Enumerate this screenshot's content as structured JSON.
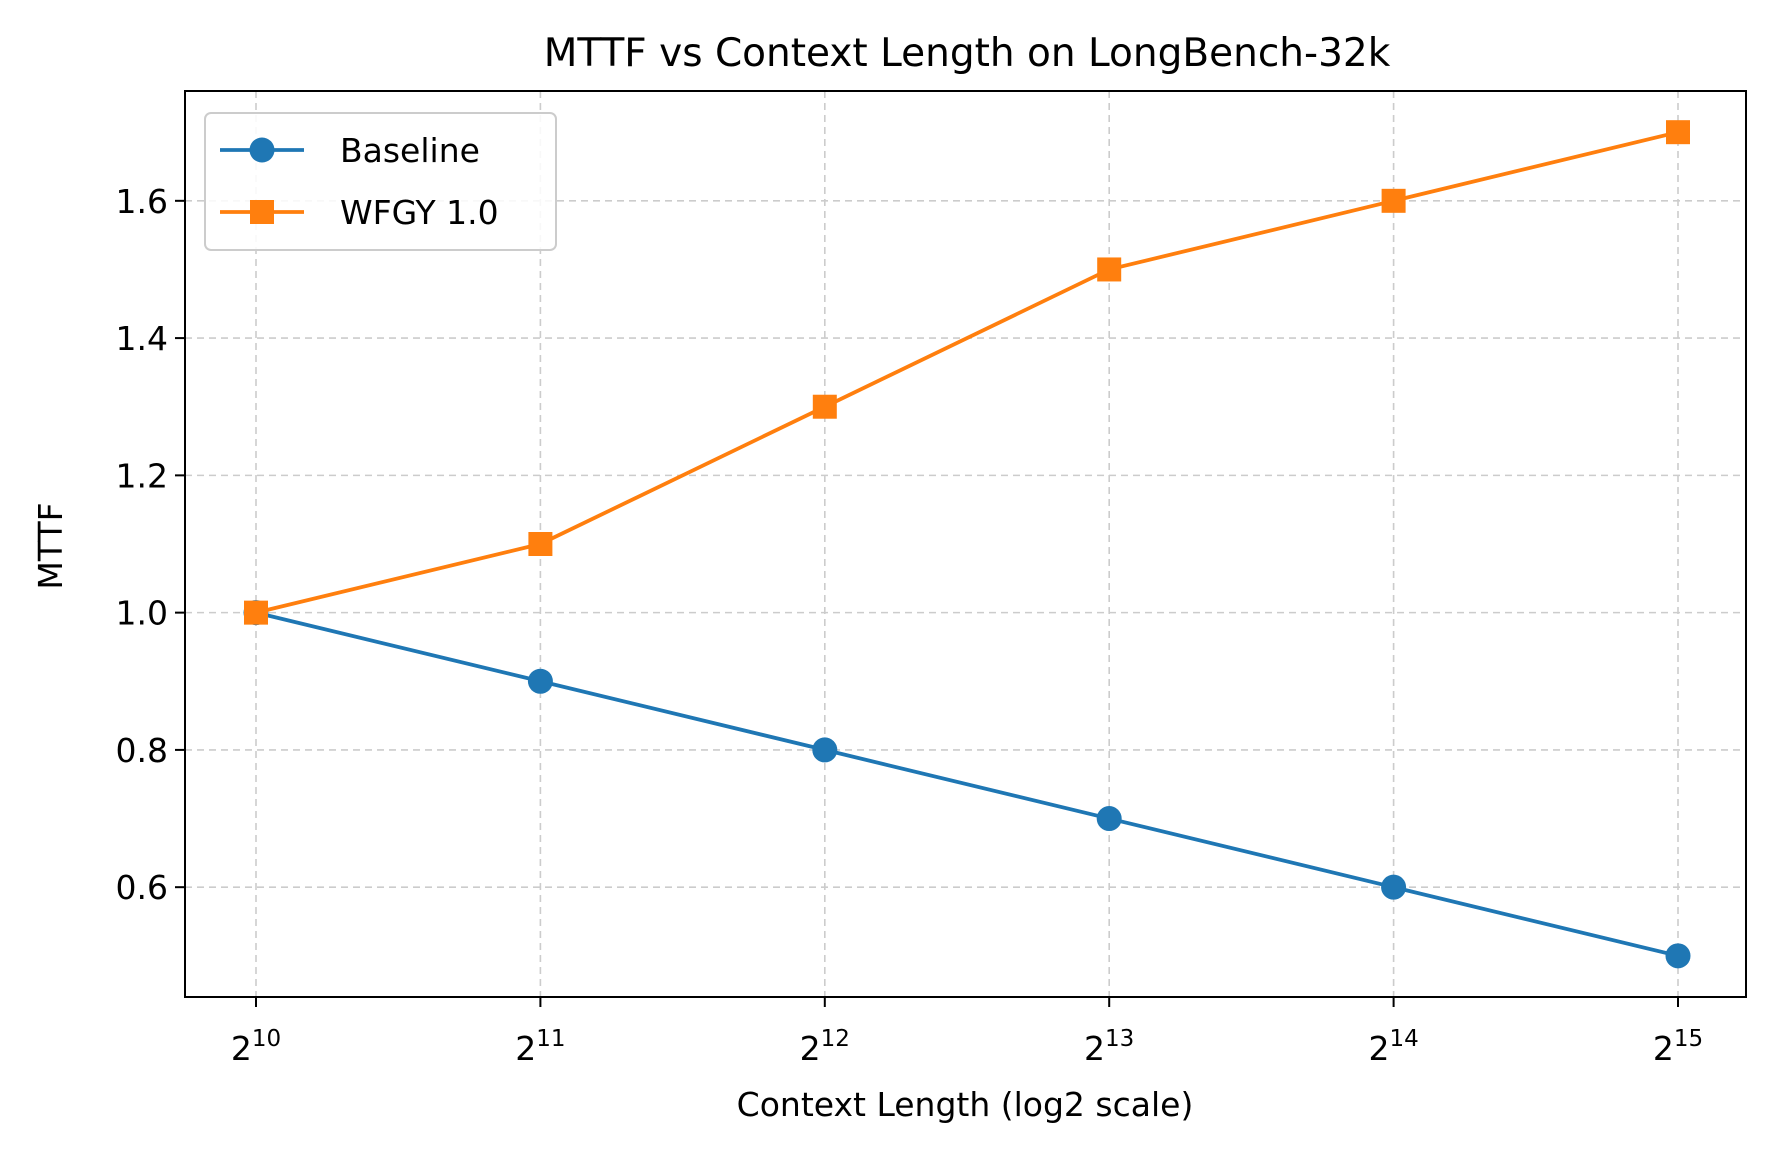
{
  "chart_data": {
    "type": "line",
    "title": "MTTF vs Context Length on LongBench-32k",
    "xlabel": "Context Length (log2 scale)",
    "ylabel": "MTTF",
    "x_scale": "log2",
    "x": [
      1024,
      2048,
      4096,
      8192,
      16384,
      32768
    ],
    "x_tick_labels": [
      {
        "base": "2",
        "exp": "10"
      },
      {
        "base": "2",
        "exp": "11"
      },
      {
        "base": "2",
        "exp": "12"
      },
      {
        "base": "2",
        "exp": "13"
      },
      {
        "base": "2",
        "exp": "14"
      },
      {
        "base": "2",
        "exp": "15"
      }
    ],
    "y_ticks": [
      "0.6",
      "0.8",
      "1.0",
      "1.2",
      "1.4",
      "1.6"
    ],
    "ylim": [
      0.44,
      1.76
    ],
    "grid": true,
    "legend_position": "upper-left",
    "series": [
      {
        "name": "Baseline",
        "color": "#1f77b4",
        "marker": "circle",
        "values": [
          1.0,
          0.9,
          0.8,
          0.7,
          0.6,
          0.5
        ]
      },
      {
        "name": "WFGY 1.0",
        "color": "#ff7f0e",
        "marker": "square",
        "values": [
          1.0,
          1.1,
          1.3,
          1.5,
          1.6,
          1.7
        ]
      }
    ]
  }
}
